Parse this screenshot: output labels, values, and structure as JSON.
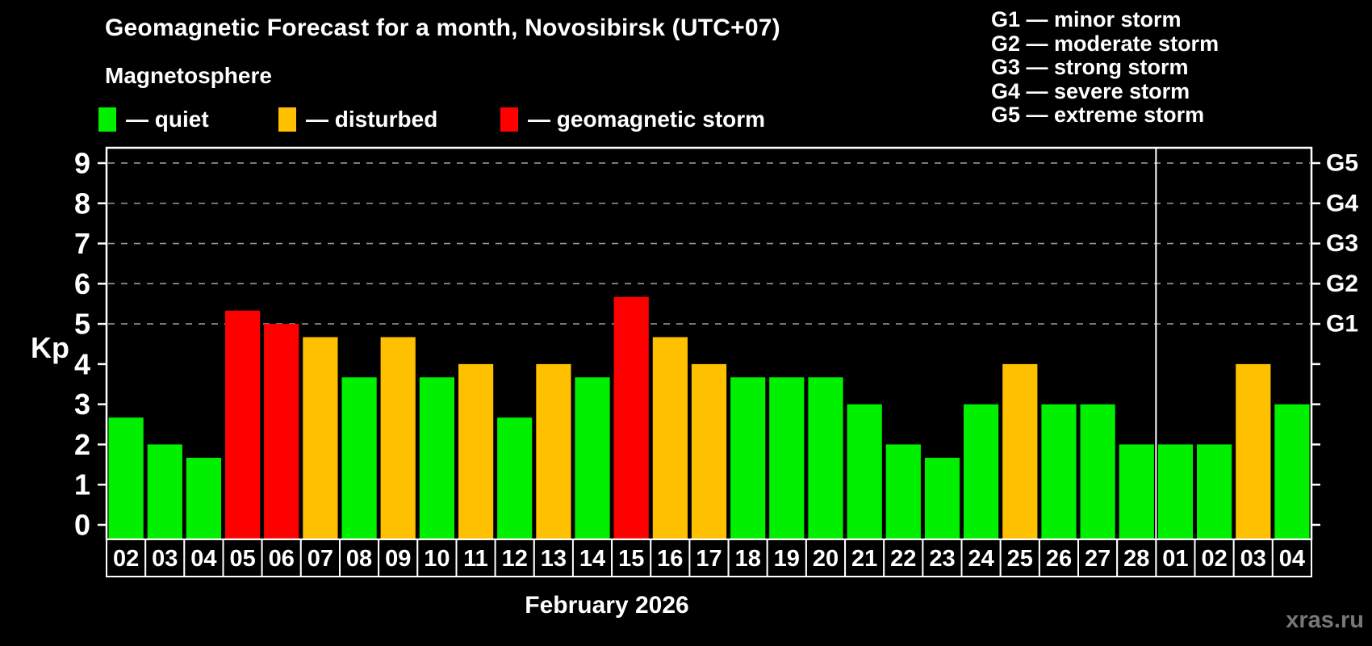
{
  "header": {
    "title": "Geomagnetic Forecast for a month, Novosibirsk (UTC+07)",
    "subtitle": "Magnetosphere",
    "legend": [
      {
        "status": "quiet",
        "label": "— quiet"
      },
      {
        "status": "disturbed",
        "label": "— disturbed"
      },
      {
        "status": "storm",
        "label": "— geomagnetic storm"
      }
    ],
    "storm_scale": [
      "G1 — minor storm",
      "G2 — moderate storm",
      "G3 — strong storm",
      "G4 — severe storm",
      "G5 — extreme storm"
    ]
  },
  "chart_data": {
    "type": "bar",
    "title": "Geomagnetic Forecast for a month, Novosibirsk (UTC+07)",
    "ylabel": "Kp",
    "xlabel": "February 2026",
    "ylim": [
      0,
      9
    ],
    "yticks": [
      0,
      1,
      2,
      3,
      4,
      5,
      6,
      7,
      8,
      9
    ],
    "gridlines_at": [
      5,
      6,
      7,
      8,
      9
    ],
    "grid": "dashed, storm levels only",
    "right_axis_labels": [
      {
        "kp": 5,
        "label": "G1"
      },
      {
        "kp": 6,
        "label": "G2"
      },
      {
        "kp": 7,
        "label": "G3"
      },
      {
        "kp": 8,
        "label": "G4"
      },
      {
        "kp": 9,
        "label": "G5"
      }
    ],
    "categories": [
      "02",
      "03",
      "04",
      "05",
      "06",
      "07",
      "08",
      "09",
      "10",
      "11",
      "12",
      "13",
      "14",
      "15",
      "16",
      "17",
      "18",
      "19",
      "20",
      "21",
      "22",
      "23",
      "24",
      "25",
      "26",
      "27",
      "28",
      "01",
      "02",
      "03",
      "04"
    ],
    "values": [
      2.67,
      2,
      1.67,
      5.33,
      5,
      4.67,
      3.67,
      4.67,
      3.67,
      4,
      2.67,
      4,
      3.67,
      5.67,
      4.67,
      4,
      3.67,
      3.67,
      3.67,
      3,
      2,
      1.67,
      3,
      4,
      3,
      3,
      2,
      2,
      2,
      4,
      3
    ],
    "status": [
      "quiet",
      "quiet",
      "quiet",
      "storm",
      "storm",
      "disturbed",
      "quiet",
      "disturbed",
      "quiet",
      "disturbed",
      "quiet",
      "disturbed",
      "quiet",
      "storm",
      "disturbed",
      "disturbed",
      "quiet",
      "quiet",
      "quiet",
      "quiet",
      "quiet",
      "quiet",
      "quiet",
      "disturbed",
      "quiet",
      "quiet",
      "quiet",
      "quiet",
      "quiet",
      "disturbed",
      "quiet"
    ],
    "month_separator_after_index": 26,
    "colors": {
      "quiet": "#00f000",
      "disturbed": "#ffc000",
      "storm": "#ff0000",
      "grid": "#999999",
      "axis": "#ffffff",
      "background": "#000000",
      "watermark": "#777777"
    }
  },
  "footer": {
    "month_label": "February 2026",
    "watermark": "xras.ru"
  }
}
